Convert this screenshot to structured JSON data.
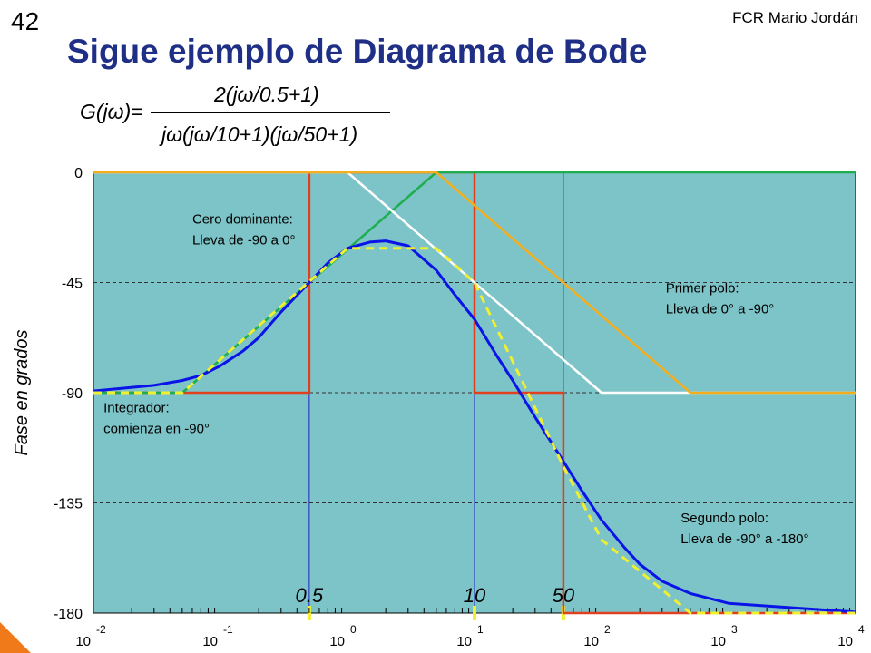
{
  "slide": {
    "number": "42",
    "author": "FCR Mario Jordán",
    "title": "Sigue ejemplo de Diagrama de Bode",
    "formula": {
      "lhs": "G(jω)=",
      "numerator": "2(jω/0.5+1)",
      "denominator": "jω(jω/10+1)(jω/50+1)"
    }
  },
  "colors": {
    "plot_background": "#7dc4c8",
    "exact_phase": "#0a14e6",
    "asymptotic_total": "#f0f030",
    "breakpoint_boxes": "#e0401f",
    "zero_asymptote": "#1fae4f",
    "pole1_asymptote": "#ffffff",
    "pole2_asymptote": "#f5ae1b",
    "corner_lines": "#2020c8"
  },
  "chart_data": {
    "type": "line",
    "title": "",
    "xlabel": "",
    "ylabel": "Fase en grados",
    "xscale": "log",
    "xlim": [
      0.01,
      10000
    ],
    "ylim": [
      -180,
      0
    ],
    "grid": "horizontal dashed",
    "x_ticks": [
      {
        "base": "10",
        "exp": "-2"
      },
      {
        "base": "10",
        "exp": "-1"
      },
      {
        "base": "10",
        "exp": "0"
      },
      {
        "base": "10",
        "exp": "1"
      },
      {
        "base": "10",
        "exp": "2"
      },
      {
        "base": "10",
        "exp": "3"
      },
      {
        "base": "10",
        "exp": "4"
      }
    ],
    "y_ticks": [
      "0",
      "-45",
      "-90",
      "-135",
      "-180"
    ],
    "corner_frequencies": [
      {
        "x": 0.5,
        "label": "0.5"
      },
      {
        "x": 10,
        "label": "10"
      },
      {
        "x": 50,
        "label": "50"
      }
    ],
    "series": [
      {
        "key": "boxes",
        "x": [
          0.01,
          0.5,
          0.5,
          10,
          10,
          50,
          50,
          10000
        ],
        "y": [
          -90,
          -90,
          0,
          0,
          -90,
          -90,
          -180,
          -180
        ]
      },
      {
        "key": "zero",
        "x": [
          0.01,
          0.05,
          5,
          10000
        ],
        "y": [
          -90,
          -90,
          0,
          0
        ]
      },
      {
        "key": "pole1",
        "x": [
          0.01,
          1,
          100,
          10000
        ],
        "y": [
          0,
          0,
          -90,
          -90
        ]
      },
      {
        "key": "pole2",
        "x": [
          0.01,
          5,
          500,
          10000
        ],
        "y": [
          0,
          0,
          -90,
          -90
        ]
      },
      {
        "key": "exact",
        "x": [
          0.01,
          0.03,
          0.05,
          0.07,
          0.1,
          0.15,
          0.2,
          0.3,
          0.5,
          0.7,
          1,
          1.5,
          2,
          3,
          5,
          7,
          10,
          15,
          20,
          30,
          50,
          70,
          100,
          150,
          200,
          300,
          500,
          1000,
          10000
        ],
        "y": [
          -89.3,
          -87,
          -85,
          -83,
          -79,
          -73,
          -67.5,
          -57,
          -45,
          -37,
          -31,
          -28.5,
          -28,
          -30,
          -40,
          -50,
          -60,
          -75,
          -85,
          -100,
          -118,
          -130,
          -142,
          -153,
          -160,
          -167,
          -172,
          -176,
          -179.6
        ]
      },
      {
        "key": "asym",
        "x": [
          0.01,
          0.05,
          1,
          5,
          10,
          50,
          100,
          500,
          10000
        ],
        "y": [
          -90,
          -90,
          -31,
          -31,
          -45,
          -120,
          -150,
          -180,
          -180
        ]
      }
    ],
    "annotations": [
      {
        "text": [
          "Cero dominante:",
          "Lleva de -90 a 0°"
        ],
        "x": 0.06,
        "y": -21
      },
      {
        "text": [
          "Primer polo:",
          "Lleva de 0° a -90°"
        ],
        "x": 320,
        "y": -49
      },
      {
        "text": [
          "Integrador:",
          "comienza en -90°"
        ],
        "x": 0.012,
        "y": -98
      },
      {
        "text": [
          "Segundo polo:",
          "Lleva de -90° a -180°"
        ],
        "x": 420,
        "y": -143
      }
    ]
  }
}
